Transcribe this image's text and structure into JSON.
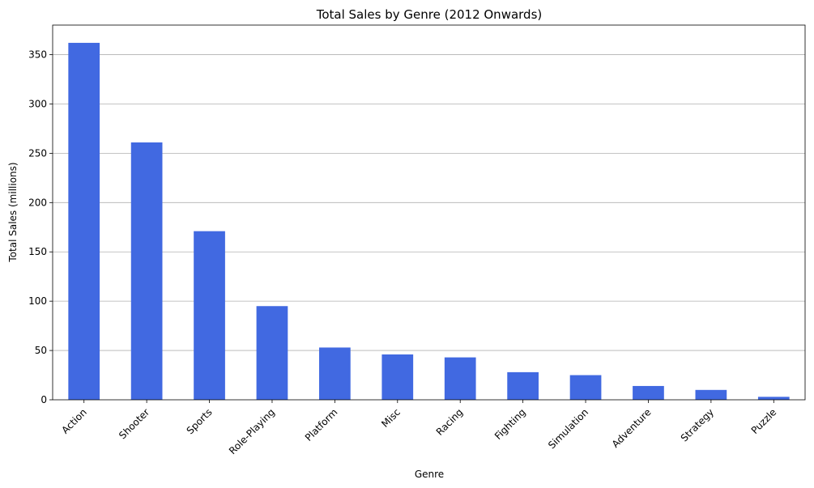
{
  "chart_data": {
    "type": "bar",
    "title": "Total Sales by Genre (2012 Onwards)",
    "xlabel": "Genre",
    "ylabel": "Total Sales (millions)",
    "categories": [
      "Action",
      "Shooter",
      "Sports",
      "Role-Playing",
      "Platform",
      "Misc",
      "Racing",
      "Fighting",
      "Simulation",
      "Adventure",
      "Strategy",
      "Puzzle"
    ],
    "values": [
      362,
      261,
      171,
      95,
      53,
      46,
      43,
      28,
      25,
      14,
      10,
      3
    ],
    "ylim": [
      0,
      380
    ],
    "yticks": [
      0,
      50,
      100,
      150,
      200,
      250,
      300,
      350
    ],
    "grid": "y",
    "bar_color": "#4169e1"
  }
}
